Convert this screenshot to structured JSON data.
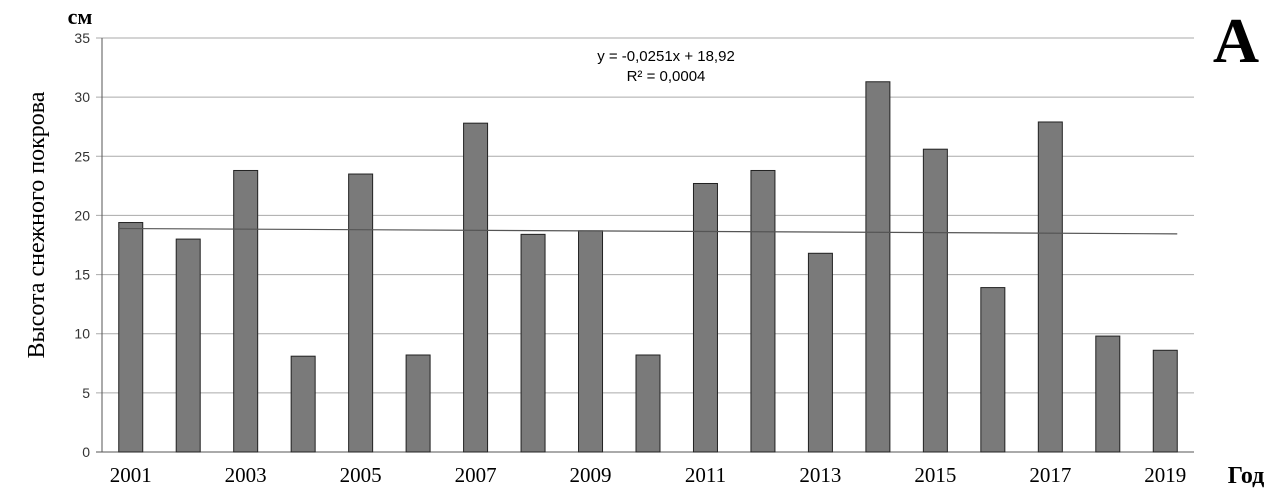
{
  "chart_data": {
    "type": "bar",
    "categories": [
      "2001",
      "2002",
      "2003",
      "2004",
      "2005",
      "2006",
      "2007",
      "2008",
      "2009",
      "2010",
      "2011",
      "2012",
      "2013",
      "2014",
      "2015",
      "2016",
      "2017",
      "2018",
      "2019"
    ],
    "values": [
      19.4,
      18.0,
      23.8,
      8.1,
      23.5,
      8.2,
      27.8,
      18.4,
      18.7,
      8.2,
      22.7,
      23.8,
      16.8,
      31.3,
      25.6,
      13.9,
      27.9,
      9.8,
      8.6
    ],
    "x_tick_labels": [
      "2001",
      "2003",
      "2005",
      "2007",
      "2009",
      "2011",
      "2013",
      "2015",
      "2017",
      "2019"
    ],
    "y_ticks": [
      "0",
      "5",
      "10",
      "15",
      "20",
      "25",
      "30",
      "35"
    ],
    "ylim": [
      0,
      35
    ],
    "ylabel": "Высота снежного покрова",
    "y_unit": "см",
    "xlabel": "Год",
    "panel_label": "А",
    "trendline": {
      "equation": "y = -0,0251x + 18,92",
      "r_squared": "R² = 0,0004",
      "slope": -0.0251,
      "intercept": 18.92
    },
    "grid": true,
    "colors": {
      "bar_fill": "#7a7a7a",
      "bar_stroke": "#222222",
      "gridline": "#aaaaaa",
      "trendline": "#555555"
    }
  }
}
